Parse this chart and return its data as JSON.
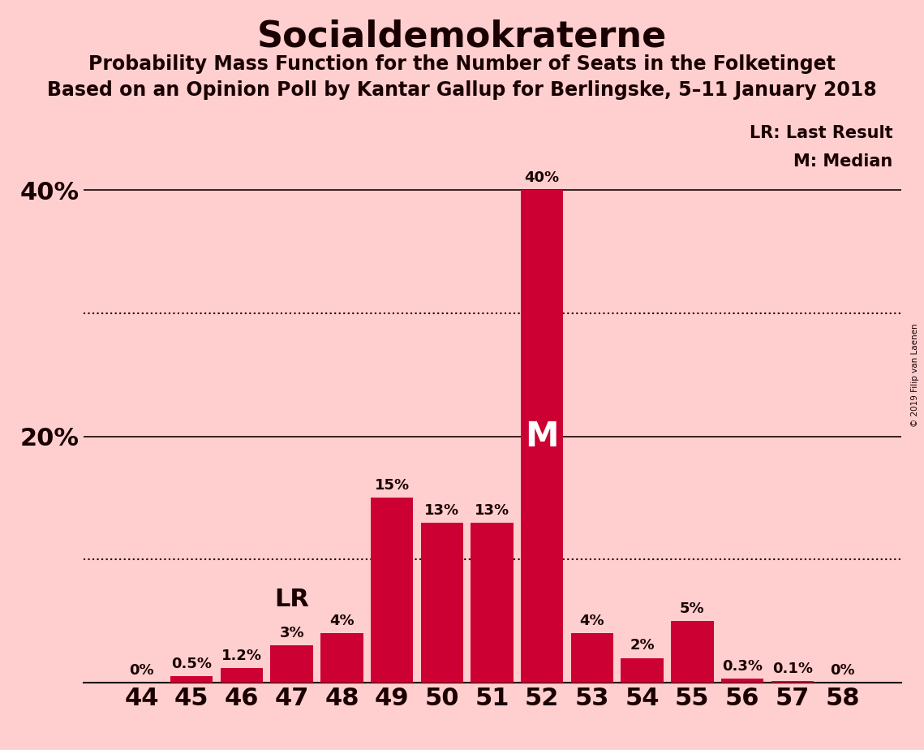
{
  "title": "Socialdemokraterne",
  "subtitle1": "Probability Mass Function for the Number of Seats in the Folketinget",
  "subtitle2": "Based on an Opinion Poll by Kantar Gallup for Berlingske, 5–11 January 2018",
  "copyright": "© 2019 Filip van Laenen",
  "categories": [
    44,
    45,
    46,
    47,
    48,
    49,
    50,
    51,
    52,
    53,
    54,
    55,
    56,
    57,
    58
  ],
  "values": [
    0.0,
    0.5,
    1.2,
    3.0,
    4.0,
    15.0,
    13.0,
    13.0,
    40.0,
    4.0,
    2.0,
    5.0,
    0.3,
    0.1,
    0.0
  ],
  "labels": [
    "0%",
    "0.5%",
    "1.2%",
    "3%",
    "4%",
    "15%",
    "13%",
    "13%",
    "40%",
    "4%",
    "2%",
    "5%",
    "0.3%",
    "0.1%",
    "0%"
  ],
  "bar_color": "#CC0033",
  "background_color": "#FFCFCF",
  "text_color": "#1a0000",
  "title_fontsize": 32,
  "subtitle_fontsize": 17,
  "ylabel_ticks": [
    "20%",
    "40%"
  ],
  "ylabel_values": [
    20,
    40
  ],
  "ylim": [
    0,
    46
  ],
  "lr_seat": 47,
  "median_seat": 52,
  "legend_lr": "LR: Last Result",
  "legend_m": "M: Median",
  "dotted_line_values": [
    10,
    30
  ],
  "solid_line_values": [
    0,
    20,
    40
  ]
}
